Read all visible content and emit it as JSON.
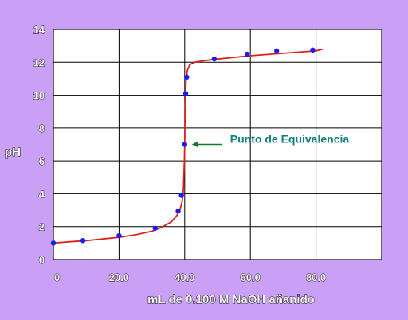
{
  "chart_data": {
    "type": "scatter",
    "xlabel": "mL de 0.100 M NaOH añanido",
    "ylabel": "pH",
    "xlim": [
      0,
      100
    ],
    "ylim": [
      0,
      14
    ],
    "x_ticks": [
      0,
      20,
      40,
      60,
      80
    ],
    "x_tick_labels": [
      "0",
      "20.0",
      "40.0",
      "60.0",
      "80.0"
    ],
    "y_ticks": [
      0,
      2,
      4,
      6,
      8,
      10,
      12,
      14
    ],
    "y_tick_labels": [
      "0",
      "2",
      "4",
      "6",
      "8",
      "10",
      "12",
      "14"
    ],
    "grid": true,
    "series": [
      {
        "marker": "circle",
        "color": "#1a1aff",
        "x": [
          0,
          9,
          20,
          31,
          38,
          39,
          40,
          40.3,
          40.6,
          49,
          59,
          68,
          79
        ],
        "y": [
          1.0,
          1.15,
          1.45,
          1.9,
          2.95,
          3.9,
          7.0,
          10.1,
          11.1,
          12.2,
          12.5,
          12.7,
          12.75
        ]
      }
    ],
    "fit_curve": {
      "color": "#e0201a",
      "x": [
        0,
        5,
        10,
        15,
        20,
        25,
        30,
        33,
        36,
        37.5,
        38.5,
        39.2,
        39.6,
        39.9,
        40.0,
        40.1,
        40.4,
        40.8,
        41.5,
        43,
        46,
        50,
        60,
        70,
        80,
        82
      ],
      "y": [
        1.0,
        1.08,
        1.15,
        1.25,
        1.35,
        1.5,
        1.72,
        1.95,
        2.3,
        2.65,
        3.0,
        3.5,
        4.3,
        6.0,
        7.0,
        9.0,
        10.8,
        11.5,
        11.85,
        12.0,
        12.1,
        12.2,
        12.4,
        12.55,
        12.7,
        12.8
      ]
    },
    "annotation": {
      "text": "Punto de Equivalencia",
      "color": "#0f7f7f",
      "arrow_color": "#0f7f2a",
      "points_to": [
        40,
        7.0
      ]
    },
    "plot_background": "#ffffff",
    "page_background": "#c9a0f6"
  }
}
